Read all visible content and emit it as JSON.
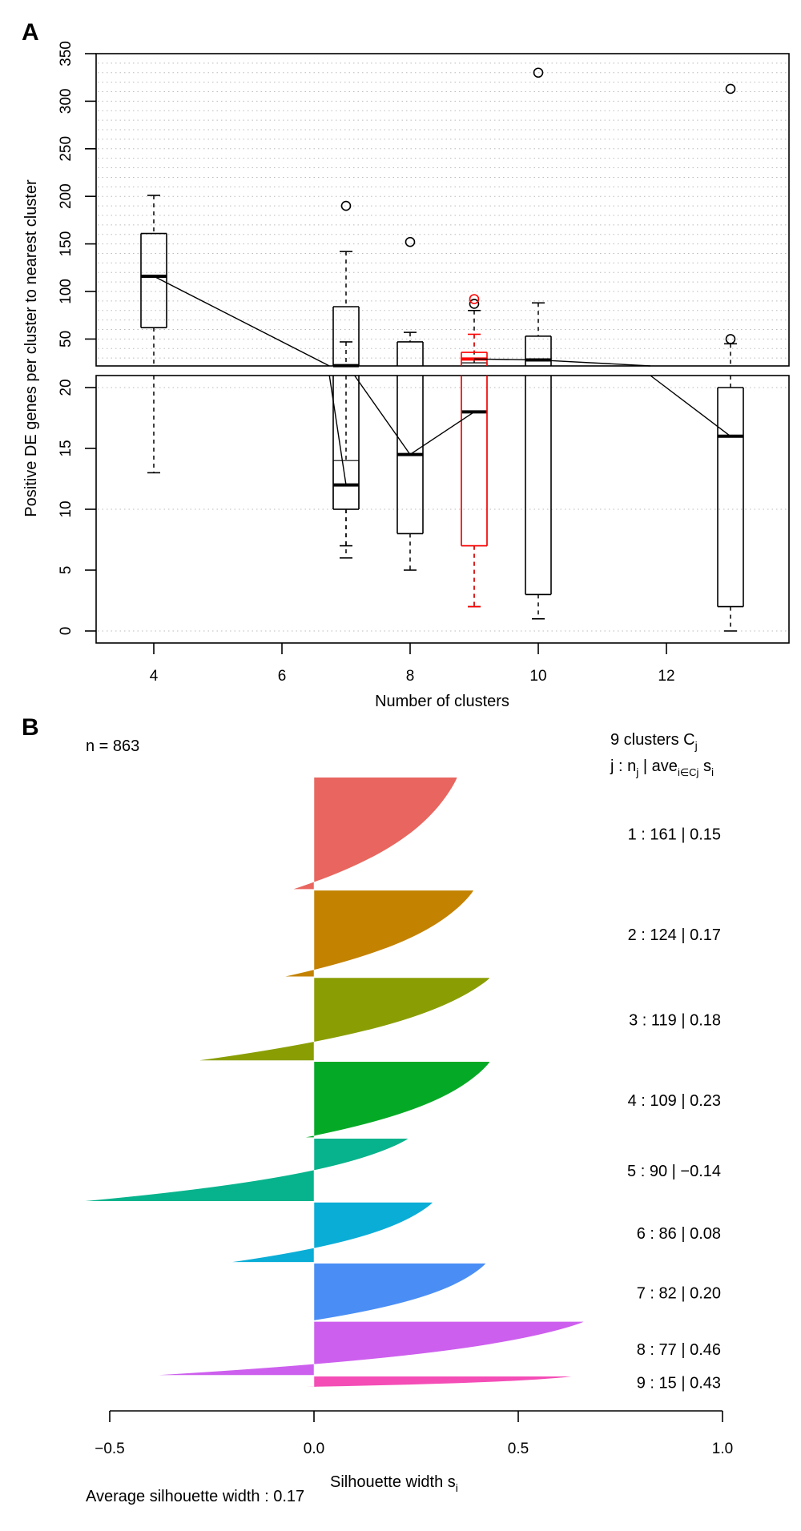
{
  "chart_data": [
    {
      "panel": "A",
      "type": "boxplot",
      "xlabel": "Number of clusters",
      "ylabel": "Positive DE genes per cluster to nearest cluster",
      "xticks": [
        "4",
        "6",
        "8",
        "10",
        "12"
      ],
      "xtick_values": [
        4,
        6,
        8,
        10,
        12
      ],
      "xlim": [
        3.1,
        13.8
      ],
      "axis_break": true,
      "upper_ylim": [
        21,
        350
      ],
      "upper_yticks": [
        "50",
        "100",
        "150",
        "200",
        "250",
        "300",
        "350"
      ],
      "upper_ytick_values": [
        50,
        100,
        150,
        200,
        250,
        300,
        350
      ],
      "lower_ylim": [
        -1,
        21
      ],
      "lower_yticks": [
        "0",
        "5",
        "10",
        "15",
        "20"
      ],
      "lower_ytick_values": [
        0,
        5,
        10,
        15,
        20
      ],
      "grid": "dotted horizontal",
      "boxes": [
        {
          "x": 4,
          "lower_whisker": 13,
          "q1": 62,
          "median": 116,
          "q3": 161,
          "upper_whisker": 201,
          "outliers": [],
          "color": "#000000"
        },
        {
          "x": 7,
          "lower_whisker": 6,
          "q1": 10,
          "median": 22,
          "q3": 84,
          "upper_whisker": 142,
          "outliers": [
            190
          ],
          "color": "#000000"
        },
        {
          "x": 7,
          "lower_whisker": 7,
          "q1": 10,
          "median": 12,
          "q3": 14,
          "upper_whisker": 47,
          "outliers": [],
          "color": "#000000",
          "secondary": true
        },
        {
          "x": 8,
          "lower_whisker": 5,
          "q1": 8,
          "median": 14.5,
          "q3": 47,
          "upper_whisker": 57,
          "outliers": [
            152
          ],
          "color": "#000000"
        },
        {
          "x": 9,
          "lower_whisker": 2,
          "q1": 7,
          "median": 18,
          "q3": 25,
          "upper_whisker": 80,
          "outliers": [
            87
          ],
          "color": "#000000",
          "secondary": true
        },
        {
          "x": 9,
          "lower_whisker": 2,
          "q1": 7,
          "median": 29,
          "q3": 36,
          "upper_whisker": 55,
          "outliers": [
            92
          ],
          "color": "#ff0000"
        },
        {
          "x": 10,
          "lower_whisker": 1,
          "q1": 3,
          "median": 28,
          "q3": 53,
          "upper_whisker": 88,
          "outliers": [
            330
          ],
          "color": "#000000"
        },
        {
          "x": 13,
          "lower_whisker": 0,
          "q1": 2,
          "median": 16,
          "q3": 20,
          "upper_whisker": 45,
          "outliers": [
            50,
            313
          ],
          "color": "#000000"
        }
      ],
      "median_line": [
        [
          4,
          116
        ],
        [
          7,
          12
        ],
        [
          7,
          22
        ],
        [
          8,
          14.5
        ],
        [
          9,
          18
        ],
        [
          9,
          29
        ],
        [
          10,
          28
        ],
        [
          13,
          16
        ]
      ]
    },
    {
      "panel": "B",
      "type": "silhouette",
      "n_label": "n = 863",
      "header_line1": "9  clusters  C",
      "header_line1_sub": "j",
      "header_line2_a": "j :  n",
      "header_line2_sub1": "j",
      "header_line2_b": " | ave",
      "header_line2_sub2": "i∈Cj",
      "header_line2_c": "  s",
      "header_line2_sub3": "i",
      "xlabel": "Silhouette width s",
      "xlabel_sub": "i",
      "xticks": [
        "−0.5",
        "0.0",
        "0.5",
        "1.0"
      ],
      "xtick_values": [
        -0.5,
        0.0,
        0.5,
        1.0
      ],
      "xlim": [
        -0.5,
        1.0
      ],
      "average_label": "Average silhouette width :  0.17",
      "average": 0.17,
      "clusters": [
        {
          "j": 1,
          "n": 161,
          "ave": "0.15",
          "max": 0.35,
          "min": -0.05,
          "color": "#E8665F",
          "label": "1 :   161  |  0.15"
        },
        {
          "j": 2,
          "n": 124,
          "ave": "0.17",
          "max": 0.39,
          "min": -0.07,
          "color": "#C38200",
          "label": "2 :   124  |  0.17"
        },
        {
          "j": 3,
          "n": 119,
          "ave": "0.18",
          "max": 0.43,
          "min": -0.28,
          "color": "#8A9E03",
          "label": "3 :   119  |  0.18"
        },
        {
          "j": 4,
          "n": 109,
          "ave": "0.23",
          "max": 0.43,
          "min": -0.02,
          "color": "#04AA25",
          "label": "4 :   109  |  0.23"
        },
        {
          "j": 5,
          "n": 90,
          "ave": "−0.14",
          "max": 0.23,
          "min": -0.56,
          "color": "#07B38C",
          "label": "5 :   90  |  −0.14"
        },
        {
          "j": 6,
          "n": 86,
          "ave": "0.08",
          "max": 0.29,
          "min": -0.2,
          "color": "#0AADD6",
          "label": "6 :   86  |  0.08"
        },
        {
          "j": 7,
          "n": 82,
          "ave": "0.20",
          "max": 0.42,
          "min": 0.0,
          "color": "#4A8EF5",
          "label": "7 :   82  |  0.20"
        },
        {
          "j": 8,
          "n": 77,
          "ave": "0.46",
          "max": 0.66,
          "min": -0.38,
          "color": "#CD5FEE",
          "label": "8 :   77  |  0.46"
        },
        {
          "j": 9,
          "n": 15,
          "ave": "0.43",
          "max": 0.63,
          "min": -0.02,
          "color": "#F44DB6",
          "label": "9 :   15  |  0.43"
        }
      ]
    }
  ],
  "labels": {
    "panel_a": "A",
    "panel_b": "B"
  }
}
